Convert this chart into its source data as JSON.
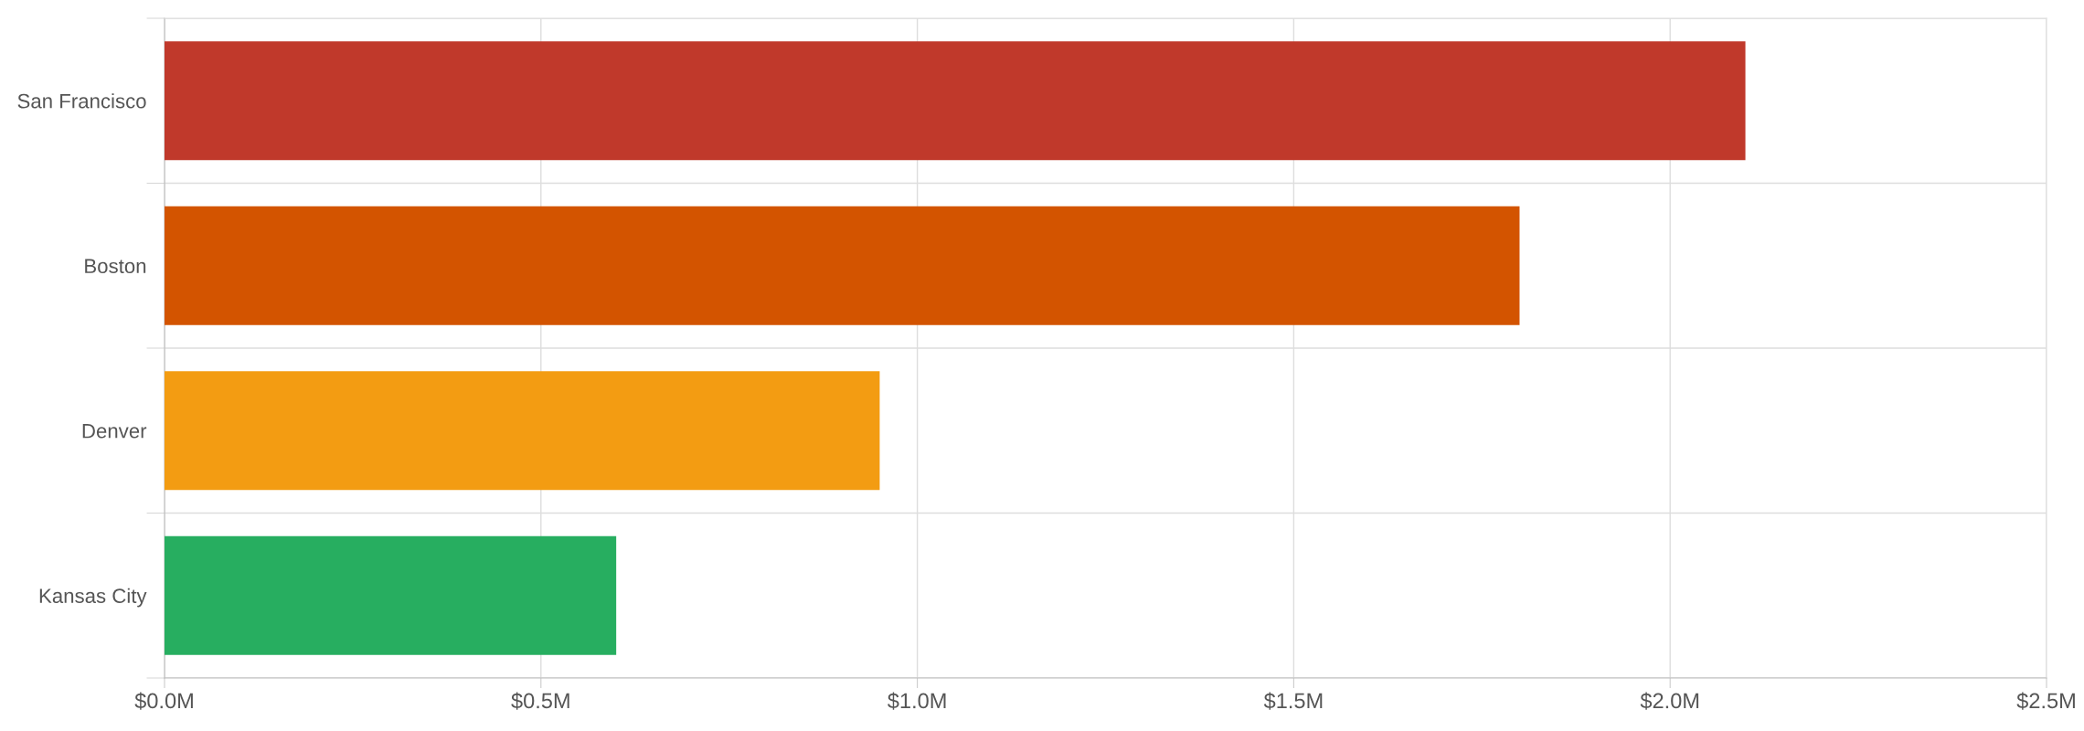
{
  "chart_data": {
    "type": "bar",
    "orientation": "horizontal",
    "categories": [
      "San Francisco",
      "Boston",
      "Denver",
      "Kansas City"
    ],
    "values": [
      2.1,
      1.8,
      0.95,
      0.6
    ],
    "colors": [
      "#c0392b",
      "#d35400",
      "#f39c12",
      "#27ae60"
    ],
    "xlim": [
      0,
      2.5
    ],
    "xticks": [
      {
        "value": 0,
        "label": "$0.0M"
      },
      {
        "value": 0.5,
        "label": "$0.5M"
      },
      {
        "value": 1.0,
        "label": "$1.0M"
      },
      {
        "value": 1.5,
        "label": "$1.5M"
      },
      {
        "value": 2.0,
        "label": "$2.0M"
      },
      {
        "value": 2.5,
        "label": "$2.5M"
      }
    ],
    "grid": "x"
  }
}
